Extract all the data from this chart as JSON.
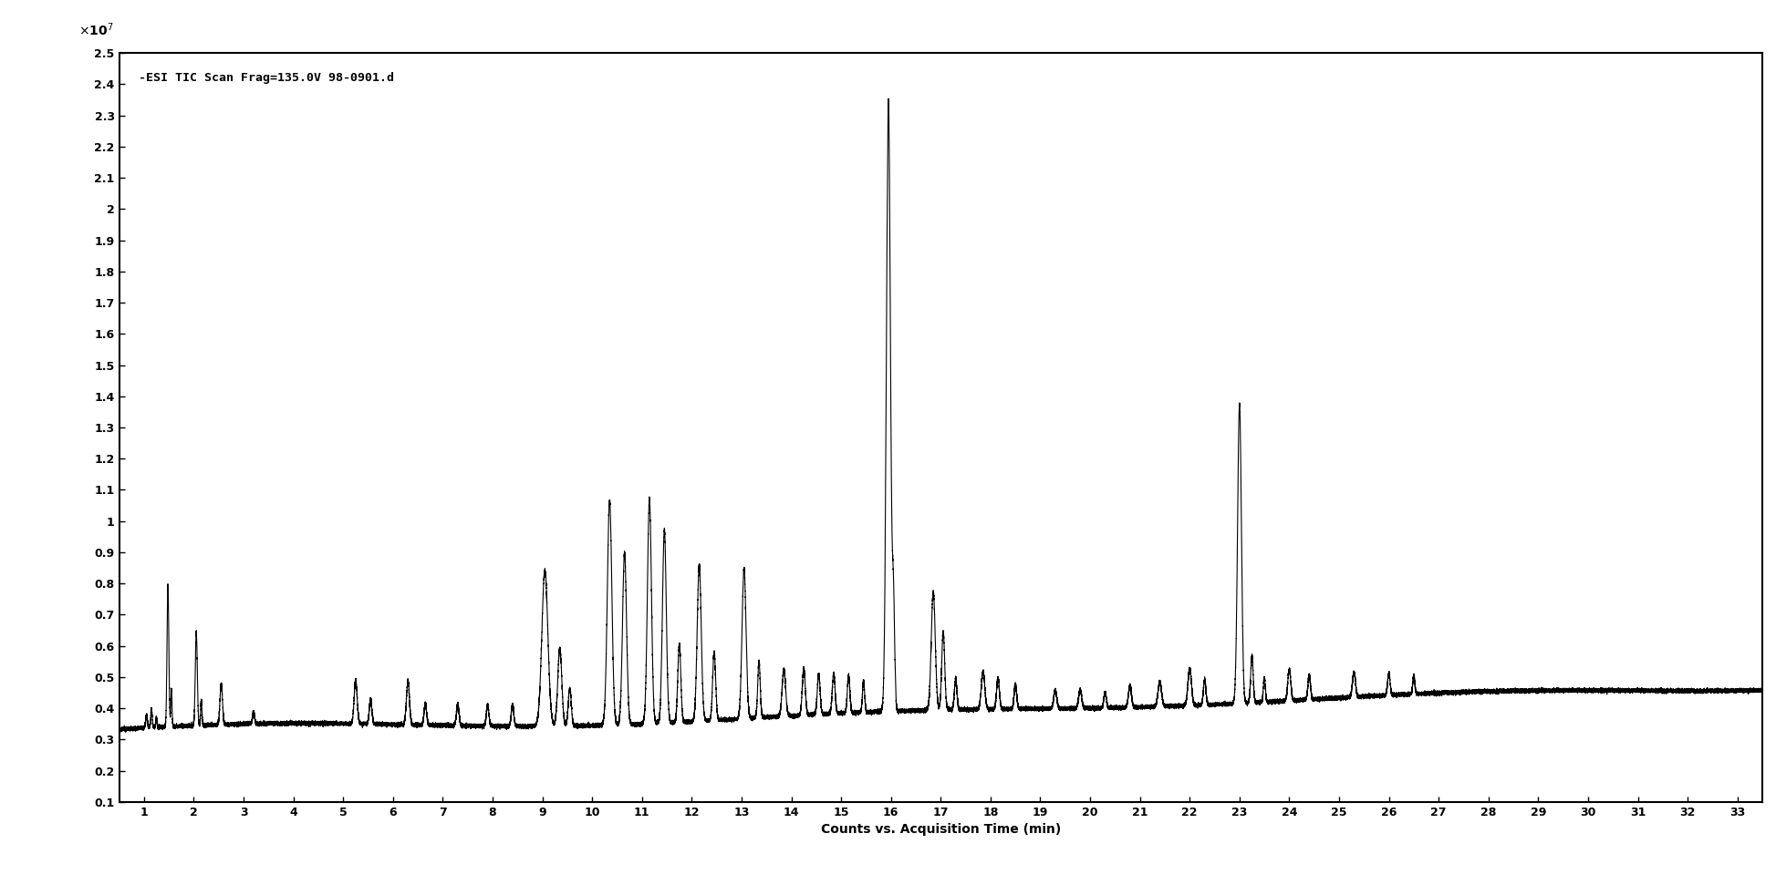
{
  "title": "-ESI TIC Scan Frag=135.0V 98-0901.d",
  "xlabel": "Counts vs. Acquisition Time (min)",
  "xlim": [
    0.5,
    33.5
  ],
  "ylim": [
    0.1,
    2.5
  ],
  "ytick_labels": [
    "0.1",
    "0.2",
    "0.3",
    "0.4",
    "0.5",
    "0.6",
    "0.7",
    "0.8",
    "0.9",
    "1",
    "1.1",
    "1.2",
    "1.3",
    "1.4",
    "1.5",
    "1.6",
    "1.7",
    "1.8",
    "1.9",
    "2",
    "2.1",
    "2.2",
    "2.3",
    "2.4",
    "2.5"
  ],
  "ytick_values": [
    0.1,
    0.2,
    0.3,
    0.4,
    0.5,
    0.6,
    0.7,
    0.8,
    0.9,
    1.0,
    1.1,
    1.2,
    1.3,
    1.4,
    1.5,
    1.6,
    1.7,
    1.8,
    1.9,
    2.0,
    2.1,
    2.2,
    2.3,
    2.4,
    2.5
  ],
  "xticks": [
    1,
    2,
    3,
    4,
    5,
    6,
    7,
    8,
    9,
    10,
    11,
    12,
    13,
    14,
    15,
    16,
    17,
    18,
    19,
    20,
    21,
    22,
    23,
    24,
    25,
    26,
    27,
    28,
    29,
    30,
    31,
    32,
    33
  ],
  "background_color": "#ffffff",
  "line_color": "#000000",
  "figsize": [
    19.47,
    9.71
  ]
}
